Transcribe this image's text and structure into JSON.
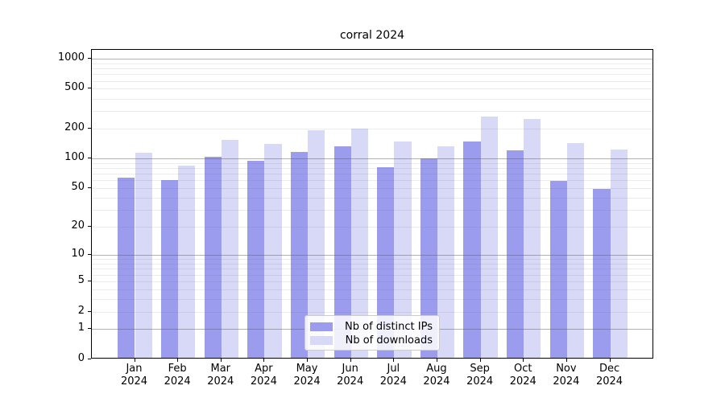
{
  "chart_data": {
    "type": "bar",
    "title": "corral 2024",
    "categories": [
      "Jan 2024",
      "Feb 2024",
      "Mar 2024",
      "Apr 2024",
      "May 2024",
      "Jun 2024",
      "Jul 2024",
      "Aug 2024",
      "Sep 2024",
      "Oct 2024",
      "Nov 2024",
      "Dec 2024"
    ],
    "months": [
      "Jan",
      "Feb",
      "Mar",
      "Apr",
      "May",
      "Jun",
      "Jul",
      "Aug",
      "Sep",
      "Oct",
      "Nov",
      "Dec"
    ],
    "year": "2024",
    "series": [
      {
        "name": "Nb of distinct IPs",
        "color": "#9c9cee",
        "values": [
          62,
          58,
          100,
          92,
          112,
          129,
          79,
          96,
          144,
          117,
          57,
          47
        ]
      },
      {
        "name": "Nb of downloads",
        "color": "#d8d8f7",
        "values": [
          110,
          82,
          148,
          135,
          186,
          192,
          143,
          129,
          255,
          240,
          138,
          119
        ]
      }
    ],
    "xlabel": "",
    "ylabel": "",
    "yscale": "log1p",
    "y_ticks": [
      0,
      1,
      2,
      5,
      10,
      20,
      50,
      100,
      200,
      500,
      1000
    ],
    "ylim": [
      0,
      1230
    ],
    "grid": {
      "major_lines_at": [
        1,
        10,
        100,
        1000
      ],
      "minor_lines": "2-9 of each decade, faint",
      "orientation": "horizontal"
    },
    "legend": {
      "position": "lower center",
      "entries": [
        "Nb of distinct IPs",
        "Nb of downloads"
      ]
    }
  },
  "colors": {
    "background": "#ffffff",
    "bar_distinct_ips": "#9c9cee",
    "bar_downloads": "#d8d8f7",
    "axis": "#000000",
    "grid_major": "#b0b0b0",
    "grid_minor": "#e6e6e6",
    "legend_border": "#cccccc",
    "text": "#000000"
  }
}
